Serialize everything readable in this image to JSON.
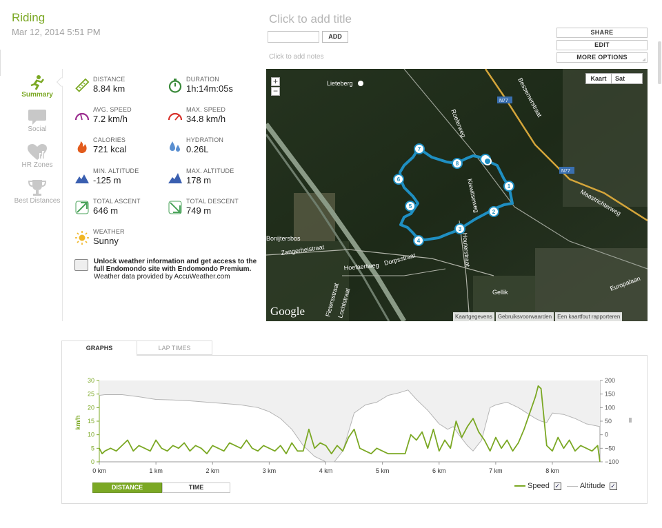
{
  "header": {
    "sport": "Riding",
    "date": "Mar 12, 2014 5:51 PM",
    "title_placeholder": "Click to add title",
    "add_label": "ADD",
    "notes_placeholder": "Click to add notes"
  },
  "actions": {
    "share": "SHARE",
    "edit": "EDIT",
    "more_options": "MORE OPTIONS"
  },
  "nav": {
    "summary": "Summary",
    "social": "Social",
    "hr_zones": "HR Zones",
    "best_distances": "Best Distances"
  },
  "stats": {
    "distance": {
      "label": "DISTANCE",
      "value": "8.84 km"
    },
    "duration": {
      "label": "DURATION",
      "value": "1h:14m:05s"
    },
    "avg_speed": {
      "label": "AVG. SPEED",
      "value": "7.2 km/h"
    },
    "max_speed": {
      "label": "MAX. SPEED",
      "value": "34.8 km/h"
    },
    "calories": {
      "label": "CALORIES",
      "value": "721 kcal"
    },
    "hydration": {
      "label": "HYDRATION",
      "value": "0.26L"
    },
    "min_altitude": {
      "label": "MIN. ALTITUDE",
      "value": "-125 m"
    },
    "max_altitude": {
      "label": "MAX. ALTITUDE",
      "value": "178 m"
    },
    "total_ascent": {
      "label": "TOTAL ASCENT",
      "value": "646 m"
    },
    "total_descent": {
      "label": "TOTAL DESCENT",
      "value": "749 m"
    },
    "weather": {
      "label": "WEATHER",
      "value": "Sunny"
    }
  },
  "weather_promo": {
    "line1": "Unlock weather information and get access to the full Endomondo site with Endomondo Premium.",
    "line2": "Weather data provided by AccuWeather.com"
  },
  "map": {
    "type_kaart": "Kaart",
    "type_sat": "Sat",
    "zoom_in": "+",
    "zoom_out": "−",
    "google": "Google",
    "footer": [
      "Kaartgegevens",
      "Gebruiksvoorwaarden",
      "Een kaartfout rapporteren"
    ],
    "labels": [
      {
        "text": "Lieteberg"
      },
      {
        "text": "N77"
      },
      {
        "text": "N77"
      },
      {
        "text": "Bessemerstraat"
      },
      {
        "text": "Roelerweg"
      },
      {
        "text": "Kiewitseweg"
      },
      {
        "text": "Maastrichterweg"
      },
      {
        "text": "Bonijtersbos"
      },
      {
        "text": "Zangerheistraat"
      },
      {
        "text": "Hoefaertweg"
      },
      {
        "text": "Dorpsstraat"
      },
      {
        "text": "Houterstraat"
      },
      {
        "text": "Gellik"
      },
      {
        "text": "Europalaan"
      },
      {
        "text": "Fletersstraat"
      },
      {
        "text": "Lochtstraat"
      }
    ],
    "markers": [
      "1",
      "2",
      "3",
      "4",
      "5",
      "6",
      "7",
      "8"
    ]
  },
  "graph": {
    "tab_graphs": "GRAPHS",
    "tab_lap_times": "LAP TIMES",
    "toggle_distance": "DISTANCE",
    "toggle_time": "TIME",
    "legend_speed": "Speed",
    "legend_altitude": "Altitude",
    "check_mark": "✓",
    "colors": {
      "speed": "#7ba824",
      "altitude": "#b4b4b4",
      "altitude_fill": "#f0f0f0"
    }
  },
  "chart_data": {
    "type": "line",
    "xlabel": "",
    "ylabel": "km/h",
    "xlim": [
      0,
      8.84
    ],
    "ylim": [
      0,
      30
    ],
    "y2lim": [
      -100,
      200
    ],
    "x_ticks": [
      "0 km",
      "1 km",
      "2 km",
      "3 km",
      "4 km",
      "5 km",
      "6 km",
      "7 km",
      "8 km"
    ],
    "y_ticks": [
      "0",
      "5",
      "10",
      "15",
      "20",
      "25",
      "30"
    ],
    "y2_ticks": [
      "−100",
      "−50",
      "0",
      "50",
      "100",
      "150",
      "200"
    ],
    "series": [
      {
        "name": "Altitude",
        "axis": "right",
        "x": [
          0,
          0.1,
          0.4,
          0.7,
          1.0,
          1.3,
          1.6,
          1.9,
          2.2,
          2.5,
          2.8,
          3.0,
          3.2,
          3.4,
          3.6,
          3.8,
          4.0,
          4.15,
          4.3,
          4.5,
          4.7,
          4.9,
          5.1,
          5.3,
          5.45,
          5.6,
          5.8,
          6.0,
          6.15,
          6.25,
          6.35,
          6.5,
          6.6,
          6.75,
          6.9,
          7.0,
          7.2,
          7.4,
          7.55,
          7.7,
          7.8,
          7.9,
          8.0,
          8.2,
          8.4,
          8.6,
          8.84
        ],
        "values": [
          145,
          148,
          148,
          140,
          130,
          128,
          125,
          120,
          115,
          110,
          100,
          85,
          60,
          20,
          -40,
          -80,
          -100,
          -100,
          -60,
          80,
          110,
          120,
          145,
          155,
          165,
          130,
          90,
          40,
          20,
          30,
          0,
          -40,
          -60,
          -20,
          100,
          110,
          120,
          100,
          80,
          60,
          50,
          45,
          80,
          75,
          60,
          40,
          30
        ]
      },
      {
        "name": "Speed",
        "axis": "left",
        "x": [
          0,
          0.05,
          0.1,
          0.2,
          0.3,
          0.4,
          0.5,
          0.6,
          0.7,
          0.8,
          0.9,
          1.0,
          1.1,
          1.2,
          1.3,
          1.4,
          1.5,
          1.6,
          1.7,
          1.8,
          1.9,
          2.0,
          2.1,
          2.2,
          2.3,
          2.4,
          2.5,
          2.6,
          2.7,
          2.8,
          2.9,
          3.0,
          3.1,
          3.2,
          3.3,
          3.4,
          3.5,
          3.6,
          3.7,
          3.8,
          3.9,
          4.0,
          4.1,
          4.2,
          4.3,
          4.4,
          4.5,
          4.6,
          4.7,
          4.8,
          4.9,
          5.0,
          5.1,
          5.2,
          5.4,
          5.5,
          5.6,
          5.7,
          5.8,
          5.9,
          6.0,
          6.1,
          6.2,
          6.3,
          6.4,
          6.5,
          6.6,
          6.7,
          6.8,
          6.9,
          7.0,
          7.1,
          7.2,
          7.3,
          7.4,
          7.5,
          7.6,
          7.7,
          7.75,
          7.8,
          7.9,
          8.0,
          8.1,
          8.2,
          8.3,
          8.4,
          8.5,
          8.6,
          8.7,
          8.8,
          8.84
        ],
        "values": [
          5,
          3,
          4,
          5,
          4,
          6,
          8,
          4,
          6,
          5,
          4,
          8,
          5,
          4,
          6,
          5,
          7,
          4,
          6,
          5,
          3,
          6,
          5,
          4,
          7,
          6,
          5,
          8,
          5,
          4,
          6,
          5,
          4,
          6,
          3,
          7,
          4,
          4,
          12,
          5,
          7,
          6,
          3,
          6,
          4,
          9,
          12,
          5,
          4,
          3,
          5,
          4,
          3,
          3,
          3,
          10,
          8,
          11,
          5,
          12,
          4,
          8,
          5,
          15,
          9,
          13,
          16,
          11,
          8,
          4,
          9,
          5,
          8,
          4,
          7,
          12,
          18,
          24,
          28,
          27,
          6,
          4,
          9,
          5,
          8,
          4,
          6,
          5,
          4,
          6,
          0
        ]
      }
    ]
  }
}
